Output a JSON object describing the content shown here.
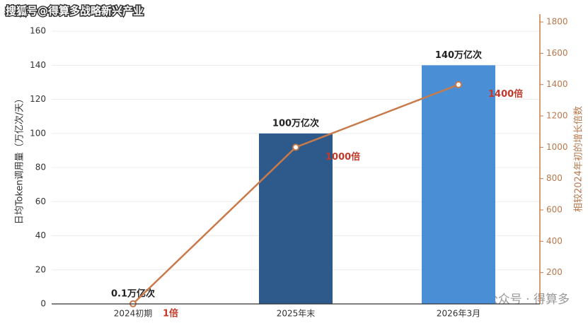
{
  "watermarks": {
    "top": "搜狐号@得算多战略新兴产业",
    "bottom": "公众号 · 得算多"
  },
  "chart_data": {
    "type": "bar-line",
    "ylabel": "日均Token调用量（万亿次/天）",
    "y2label": "相较2024年初的增长倍数",
    "categories": [
      "2024初期",
      "2025年末",
      "2026年3月"
    ],
    "series": [
      {
        "type": "bar",
        "colors": [
          "#3a6a9e",
          "#2d5a8a",
          "#4a8fd6"
        ],
        "values": [
          0.1,
          100,
          140
        ],
        "value_labels": [
          "0.1万亿次",
          "100万亿次",
          "140万亿次"
        ]
      },
      {
        "type": "line",
        "axis": "y2",
        "color": "#c87a4a",
        "values": [
          1,
          1000,
          1400
        ],
        "value_labels": [
          "1倍",
          "1000倍",
          "1400倍"
        ]
      }
    ],
    "ylim": [
      0,
      170
    ],
    "yticks": [
      0,
      20,
      40,
      60,
      80,
      100,
      120,
      140,
      160
    ],
    "y2lim": [
      0,
      1850
    ],
    "y2ticks": [
      200,
      400,
      600,
      800,
      1000,
      1200,
      1400,
      1600,
      1800
    ],
    "grid": true
  }
}
